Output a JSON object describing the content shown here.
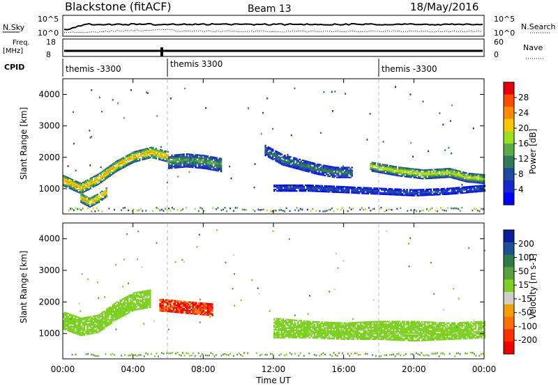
{
  "header": {
    "station": "Blackstone (fitACF)",
    "beam": "Beam 13",
    "date": "18/May/2016"
  },
  "status_panels": {
    "nsky_label": "N.Sky",
    "nsky_top": "10^5",
    "nsky_bottom": "10^0",
    "nsearch_label": "N.Search",
    "nsearch_top": "10^5",
    "nsearch_bottom": "10^0",
    "freq_label": "Freq.",
    "freq_unit": "[MHz]",
    "freq_top": "18",
    "freq_bottom": "8",
    "nave_label": "Nave",
    "nave_top": "60",
    "nave_bottom": "0",
    "cpid_label": "CPID",
    "cpid_segments": [
      {
        "label": "themis -3300",
        "start_hour": 0.0
      },
      {
        "label": "themis 3300",
        "start_hour": 5.95
      },
      {
        "label": "themis -3300",
        "start_hour": 18.0
      }
    ]
  },
  "chart_data": [
    {
      "type": "heatmap",
      "name": "power",
      "ylabel": "Slant Range [km]",
      "xlabel": "Time UT",
      "ylim": [
        200,
        4500
      ],
      "xlim": [
        0,
        24
      ],
      "yticks": [
        1000,
        2000,
        3000,
        4000
      ],
      "xticks": [
        "00:00",
        "04:00",
        "08:00",
        "12:00",
        "16:00",
        "20:00",
        "00:00"
      ],
      "colorbar": {
        "label": "Power [dB]",
        "ticks": [
          "28",
          "24",
          "20",
          "16",
          "12",
          "8",
          "4"
        ],
        "colors": [
          "#e8000b",
          "#ff4a00",
          "#ff8c00",
          "#f5c800",
          "#9be020",
          "#5aaa46",
          "#2f7a5a",
          "#1e4aa0",
          "#1428d2",
          "#0000ff"
        ]
      },
      "bands": [
        {
          "t": [
            0.0,
            1.0,
            2.0,
            3.0,
            4.0,
            5.0,
            6.0
          ],
          "r": [
            1250,
            1000,
            1300,
            1700,
            2000,
            2150,
            2000
          ],
          "w": 170,
          "power": 24
        },
        {
          "t": [
            1.0,
            1.5,
            2.0,
            2.5
          ],
          "r": [
            700,
            550,
            700,
            900
          ],
          "w": 150,
          "power": 24
        },
        {
          "t": [
            6.0,
            7.0,
            8.0,
            9.0
          ],
          "r": [
            1850,
            1900,
            1850,
            1750
          ],
          "w": 220,
          "power": 14
        },
        {
          "t": [
            11.5,
            12.5,
            13.5,
            14.5,
            15.5,
            16.5
          ],
          "r": [
            2200,
            1900,
            1750,
            1600,
            1500,
            1500
          ],
          "w": 160,
          "power": 12
        },
        {
          "t": [
            12.0,
            14.0,
            16.0,
            18.0,
            20.0,
            22.0,
            24.0
          ],
          "r": [
            1000,
            1000,
            950,
            900,
            850,
            900,
            1000
          ],
          "w": 90,
          "power": 8
        },
        {
          "t": [
            17.5,
            19.0,
            20.5,
            22.0,
            23.0,
            24.0
          ],
          "r": [
            1700,
            1550,
            1450,
            1500,
            1350,
            1300
          ],
          "w": 150,
          "power": 20
        }
      ]
    },
    {
      "type": "heatmap",
      "name": "velocity",
      "ylabel": "Slant Range [km]",
      "xlabel": "Time UT",
      "ylim": [
        200,
        4500
      ],
      "xlim": [
        0,
        24
      ],
      "yticks": [
        1000,
        2000,
        3000,
        4000
      ],
      "xticks": [
        "00:00",
        "04:00",
        "08:00",
        "12:00",
        "16:00",
        "20:00",
        "00:00"
      ],
      "colorbar": {
        "label": "Velocity [m s-1]",
        "ticks": [
          "200",
          "100",
          "50",
          "15",
          "-15",
          "-50",
          "-100",
          "-200"
        ],
        "colors": [
          "#0a1e9b",
          "#1e5096",
          "#2e7a4a",
          "#5aa03c",
          "#7cd020",
          "#cfcfc6",
          "#f2a000",
          "#ff7000",
          "#ff3000",
          "#f00000"
        ]
      },
      "bands": [
        {
          "t": [
            0.0,
            1.0,
            2.0,
            3.0,
            4.0,
            5.0
          ],
          "r": [
            1400,
            1200,
            1300,
            1700,
            2000,
            2100
          ],
          "w": 280,
          "velocity": 0
        },
        {
          "t": [
            5.5,
            6.5,
            7.5,
            8.5
          ],
          "r": [
            1900,
            1850,
            1800,
            1750
          ],
          "w": 200,
          "velocity": -200
        },
        {
          "t": [
            12.0,
            14.0,
            16.0,
            18.0,
            20.0,
            22.0,
            24.0
          ],
          "r": [
            1300,
            1200,
            1150,
            1200,
            1200,
            1150,
            1200
          ],
          "w": 200,
          "velocity": 0
        },
        {
          "t": [
            12.0,
            14.0,
            16.0,
            18.0,
            20.0,
            22.0,
            24.0
          ],
          "r": [
            950,
            950,
            900,
            900,
            850,
            900,
            950
          ],
          "w": 100,
          "velocity": 0
        }
      ]
    }
  ]
}
